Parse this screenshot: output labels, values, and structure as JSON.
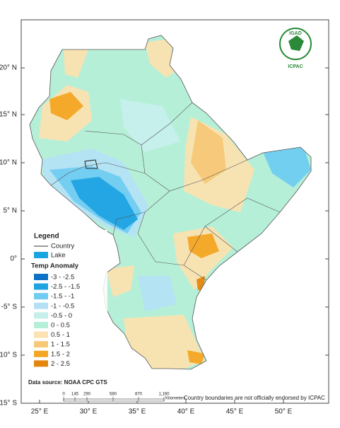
{
  "logo": {
    "name": "IGAD",
    "org": "ICPAC"
  },
  "latitude_labels": [
    "20° N",
    "15° N",
    "10° N",
    "5° N",
    "0°",
    "-5° S",
    "-10° S",
    "-15° S"
  ],
  "longitude_labels": [
    "25° E",
    "30° E",
    "35° E",
    "40° E",
    "45° E",
    "50° E"
  ],
  "legend": {
    "title": "Legend",
    "country": "Country",
    "lake": "Lake",
    "lake_color": "#19a6e0",
    "anomaly_title": "Temp  Anomaly",
    "classes": [
      {
        "label": "-3 - -2.5",
        "color": "#0b72c6"
      },
      {
        "label": "-2.5 - -1.5",
        "color": "#1fa3e2"
      },
      {
        "label": "-1.5 - -1",
        "color": "#70ccf1"
      },
      {
        "label": "-1 - -0.5",
        "color": "#b4e1f6"
      },
      {
        "label": "-0.5 - 0",
        "color": "#c6efec"
      },
      {
        "label": "0 - 0.5",
        "color": "#b6efd8"
      },
      {
        "label": "0.5 - 1",
        "color": "#fbe2b0"
      },
      {
        "label": "1 - 1.5",
        "color": "#f7c878"
      },
      {
        "label": "1.5 - 2",
        "color": "#f4a524"
      },
      {
        "label": "2 - 2.5",
        "color": "#e5860c"
      }
    ]
  },
  "data_source": "Data source: NOAA  CPC GTS",
  "scale": {
    "ticks": [
      "0",
      "145",
      "290",
      "580",
      "870",
      "1,160"
    ],
    "unit": "Kilometers"
  },
  "disclaimer": "Country boundaries are not officially endorsed by ICPAC"
}
